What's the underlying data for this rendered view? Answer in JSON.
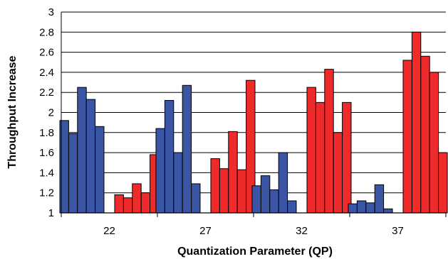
{
  "chart_data": {
    "type": "bar",
    "categories": [
      "22",
      "27",
      "32",
      "37"
    ],
    "xlabel": "Quantization Parameter (QP)",
    "ylabel": "Throughput Increase",
    "ylim": [
      1,
      3
    ],
    "yticks": [
      "1",
      "1.2",
      "1.4",
      "1.6",
      "1.8",
      "2",
      "2.2",
      "2.4",
      "2.6",
      "2.8",
      "3"
    ],
    "grid": true,
    "legend": "none",
    "colors": {
      "blue": "#3A55A4",
      "red": "#EE2A2A",
      "outline": "#000000",
      "grid": "#000000"
    },
    "groups": [
      {
        "category": "22",
        "blue": [
          1.92,
          1.79,
          2.25,
          2.13,
          1.86
        ],
        "red": [
          1.18,
          1.15,
          1.29,
          1.2,
          1.58
        ]
      },
      {
        "category": "27",
        "blue": [
          1.84,
          2.12,
          1.6,
          2.27,
          1.29
        ],
        "red": [
          1.54,
          1.44,
          1.81,
          1.43,
          2.32
        ]
      },
      {
        "category": "32",
        "blue": [
          1.27,
          1.37,
          1.23,
          1.6,
          1.12
        ],
        "red": [
          2.25,
          2.1,
          2.43,
          1.8,
          2.1
        ]
      },
      {
        "category": "37",
        "blue": [
          1.09,
          1.12,
          1.1,
          1.28,
          1.04
        ],
        "red": [
          2.52,
          2.8,
          2.56,
          2.4,
          1.6
        ]
      }
    ]
  }
}
